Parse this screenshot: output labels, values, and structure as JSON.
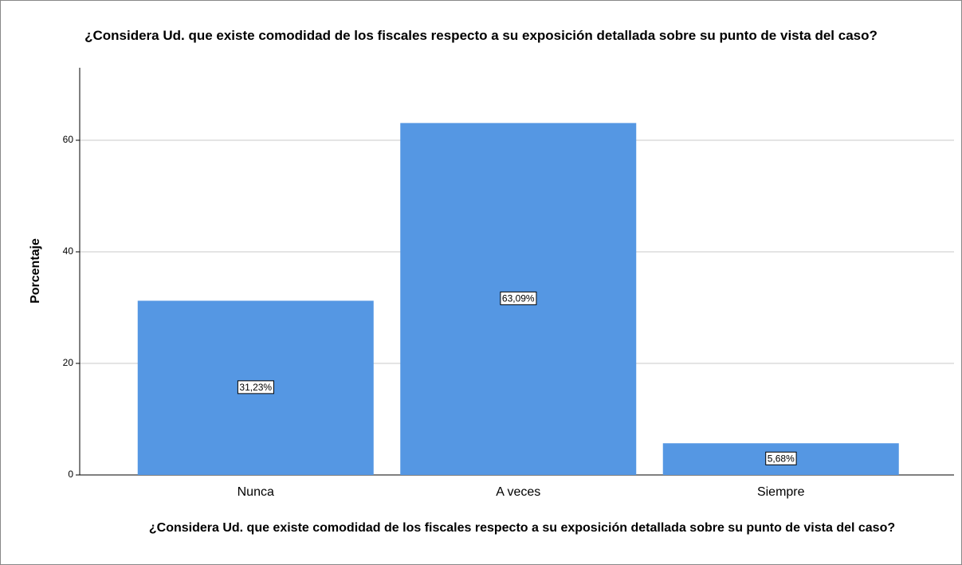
{
  "chart_data": {
    "type": "bar",
    "title": "¿Considera Ud. que existe comodidad de los fiscales respecto a su exposición detallada sobre su punto de vista del caso?",
    "x_label": "¿Considera Ud. que existe comodidad de los fiscales respecto a su exposición detallada sobre su punto de vista del caso?",
    "y_label": "Porcentaje",
    "categories": [
      "Nunca",
      "A veces",
      "Siempre"
    ],
    "values": [
      31.23,
      63.09,
      5.68
    ],
    "value_labels": [
      "31,23%",
      "63,09%",
      "5,68%"
    ],
    "color": "#5597e3",
    "ylim": [
      0,
      73
    ],
    "yticks": [
      0,
      20,
      40,
      60
    ],
    "grid": true
  }
}
